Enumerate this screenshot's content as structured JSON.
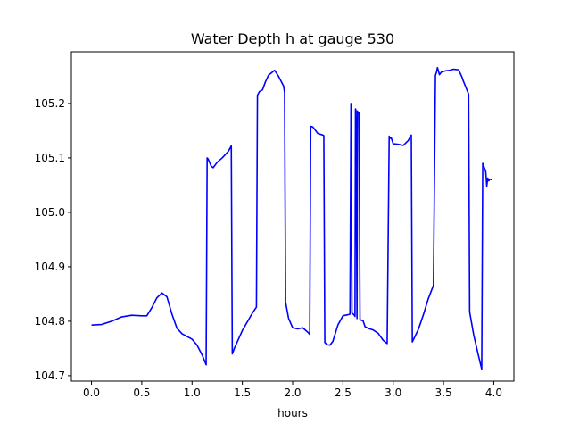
{
  "chart_data": {
    "type": "line",
    "title": "Water Depth h at gauge 530",
    "xlabel": "hours",
    "ylabel": "",
    "xlim": [
      -0.2,
      4.2
    ],
    "ylim": [
      104.69,
      105.295
    ],
    "xticks": [
      0.0,
      0.5,
      1.0,
      1.5,
      2.0,
      2.5,
      3.0,
      3.5,
      4.0
    ],
    "xtick_labels": [
      "0.0",
      "0.5",
      "1.0",
      "1.5",
      "2.0",
      "2.5",
      "3.0",
      "3.5",
      "4.0"
    ],
    "yticks": [
      104.7,
      104.8,
      104.9,
      105.0,
      105.1,
      105.2
    ],
    "ytick_labels": [
      "104.7",
      "104.8",
      "104.9",
      "105.0",
      "105.1",
      "105.2"
    ],
    "grid": false,
    "series": [
      {
        "color": "#0000ff",
        "x": [
          0.0,
          0.1,
          0.2,
          0.3,
          0.4,
          0.5,
          0.55,
          0.6,
          0.65,
          0.7,
          0.75,
          0.8,
          0.85,
          0.9,
          1.0,
          1.05,
          1.1,
          1.14,
          1.15,
          1.16,
          1.19,
          1.21,
          1.25,
          1.3,
          1.36,
          1.39,
          1.4,
          1.42,
          1.5,
          1.6,
          1.64,
          1.65,
          1.67,
          1.7,
          1.73,
          1.76,
          1.8,
          1.82,
          1.86,
          1.91,
          1.92,
          1.93,
          1.96,
          2.0,
          2.05,
          2.1,
          2.15,
          2.17,
          2.18,
          2.2,
          2.25,
          2.3,
          2.31,
          2.32,
          2.34,
          2.37,
          2.4,
          2.45,
          2.5,
          2.55,
          2.57,
          2.58,
          2.59,
          2.61,
          2.62,
          2.625,
          2.63,
          2.64,
          2.645,
          2.65,
          2.66,
          2.67,
          2.68,
          2.7,
          2.72,
          2.75,
          2.8,
          2.85,
          2.9,
          2.94,
          2.96,
          2.97,
          2.98,
          3.0,
          3.05,
          3.1,
          3.15,
          3.18,
          3.19,
          3.25,
          3.3,
          3.35,
          3.4,
          3.42,
          3.43,
          3.44,
          3.46,
          3.48,
          3.52,
          3.56,
          3.6,
          3.65,
          3.68,
          3.7,
          3.75,
          3.76,
          3.8,
          3.85,
          3.88,
          3.89,
          3.9,
          3.92,
          3.93,
          3.94,
          3.95,
          3.96,
          3.98
        ],
        "y": [
          104.793,
          104.794,
          104.8,
          104.808,
          104.811,
          104.81,
          104.81,
          104.825,
          104.843,
          104.852,
          104.845,
          104.813,
          104.787,
          104.777,
          104.767,
          104.756,
          104.738,
          104.72,
          105.1,
          105.098,
          105.085,
          105.082,
          105.092,
          105.1,
          105.112,
          105.122,
          104.74,
          104.75,
          104.783,
          104.815,
          104.826,
          105.215,
          105.222,
          105.225,
          105.24,
          105.252,
          105.258,
          105.261,
          105.25,
          105.232,
          105.22,
          104.835,
          104.805,
          104.788,
          104.786,
          104.788,
          104.78,
          104.776,
          105.158,
          105.157,
          105.145,
          105.142,
          105.141,
          104.761,
          104.757,
          104.756,
          104.763,
          104.793,
          104.81,
          104.812,
          104.813,
          105.2,
          104.815,
          104.812,
          104.809,
          105.19,
          105.187,
          104.805,
          105.186,
          105.183,
          105.183,
          104.803,
          104.802,
          104.801,
          104.79,
          104.787,
          104.784,
          104.778,
          104.765,
          104.759,
          105.14,
          105.136,
          105.137,
          105.126,
          105.125,
          105.123,
          105.132,
          105.142,
          104.762,
          104.785,
          104.812,
          104.842,
          104.866,
          105.252,
          105.257,
          105.266,
          105.253,
          105.258,
          105.26,
          105.261,
          105.263,
          105.262,
          105.25,
          105.24,
          105.217,
          104.817,
          104.775,
          104.735,
          104.712,
          105.09,
          105.085,
          105.075,
          105.048,
          105.063,
          105.058,
          105.061,
          105.06
        ]
      }
    ]
  }
}
